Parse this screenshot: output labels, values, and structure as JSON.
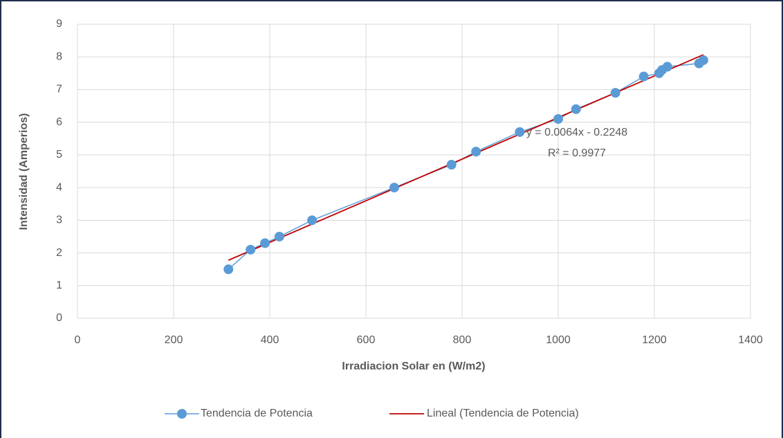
{
  "chart_data": {
    "type": "scatter-line",
    "x_label": "Irradiacion Solar en (W/m2)",
    "y_label": "Intensidad (Amperios)",
    "x": [
      314,
      360,
      390,
      420,
      488,
      659,
      778,
      829,
      920,
      1000,
      1037,
      1119,
      1178,
      1210,
      1216,
      1227,
      1293,
      1302
    ],
    "series": [
      {
        "name": "Tendencia de Potencia",
        "color": "#5b9bd5",
        "values": [
          1.5,
          2.1,
          2.3,
          2.5,
          3.0,
          4.0,
          4.7,
          5.1,
          5.7,
          6.1,
          6.4,
          6.9,
          7.4,
          7.5,
          7.6,
          7.7,
          7.8,
          7.9
        ]
      }
    ],
    "trendline": {
      "name": "Lineal (Tendencia de Potencia)",
      "color": "#c00000"
    },
    "annotations": [
      "y = 0.0064x - 0.2248",
      "R² = 0.9977"
    ],
    "xlim": [
      0,
      1400
    ],
    "xticks": [
      0,
      200,
      400,
      600,
      800,
      1000,
      1200,
      1400
    ],
    "ylim": [
      0,
      9
    ],
    "yticks": [
      0,
      1,
      2,
      3,
      4,
      5,
      6,
      7,
      8,
      9
    ],
    "grid": true,
    "legend": "bottom"
  }
}
